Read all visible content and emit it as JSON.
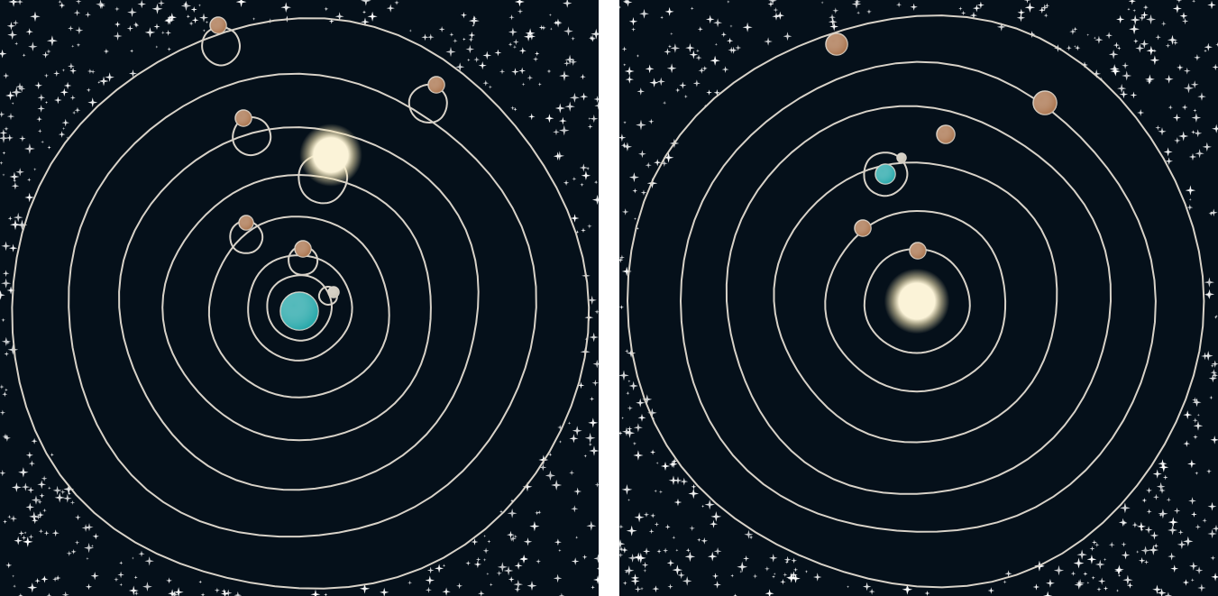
{
  "colors": {
    "space": "#05101a",
    "orbit": "#d8d2c8",
    "star": "#ffffff",
    "sun": "#fbf3d8",
    "sun_glow": "#f6e7b5",
    "earth": "#23a6a8",
    "planet": "#a8714a",
    "moon": "#c9c2b4"
  },
  "panels": [
    {
      "model": "geocentric",
      "center_body": "earth"
    },
    {
      "model": "heliocentric",
      "center_body": "sun"
    }
  ]
}
